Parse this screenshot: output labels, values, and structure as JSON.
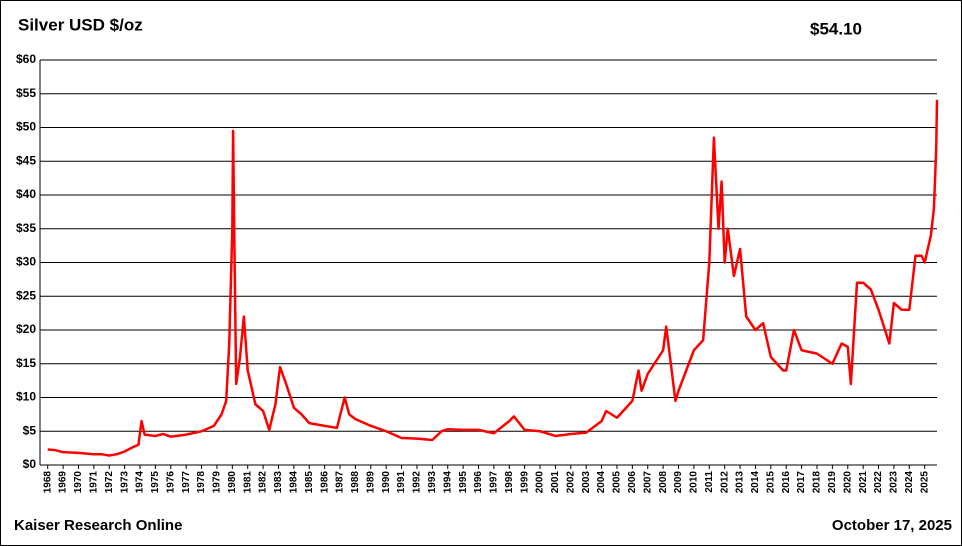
{
  "chart_data": {
    "type": "line",
    "title": "Silver USD $/oz",
    "annotation": "$54.10",
    "source": "Kaiser Research Online",
    "date": "October 17, 2025",
    "x": [
      1968.0,
      1968.5,
      1969.0,
      1970.0,
      1971.0,
      1971.5,
      1972.0,
      1972.5,
      1973.0,
      1973.5,
      1973.9,
      1974.1,
      1974.3,
      1975.0,
      1975.5,
      1976.0,
      1977.0,
      1978.0,
      1978.8,
      1979.3,
      1979.6,
      1979.8,
      1980.0,
      1980.05,
      1980.15,
      1980.25,
      1980.5,
      1980.75,
      1981.0,
      1981.5,
      1982.0,
      1982.4,
      1982.8,
      1983.1,
      1983.5,
      1984.0,
      1984.5,
      1985.0,
      1986.0,
      1986.8,
      1987.3,
      1987.6,
      1988.0,
      1989.0,
      1990.0,
      1991.0,
      1992.0,
      1993.0,
      1993.6,
      1994.0,
      1995.0,
      1996.0,
      1997.0,
      1998.0,
      1998.3,
      1999.0,
      2000.0,
      2001.0,
      2002.0,
      2003.0,
      2004.0,
      2004.3,
      2005.0,
      2006.0,
      2006.4,
      2006.6,
      2007.0,
      2008.0,
      2008.2,
      2008.8,
      2009.0,
      2009.5,
      2010.0,
      2010.6,
      2011.0,
      2011.3,
      2011.6,
      2011.8,
      2012.0,
      2012.2,
      2012.6,
      2013.0,
      2013.4,
      2014.0,
      2014.5,
      2015.0,
      2015.8,
      2016.0,
      2016.5,
      2017.0,
      2018.0,
      2019.0,
      2019.6,
      2020.0,
      2020.2,
      2020.6,
      2021.0,
      2021.5,
      2022.0,
      2022.7,
      2023.0,
      2023.5,
      2024.0,
      2024.4,
      2024.8,
      2025.0,
      2025.4,
      2025.6,
      2025.75,
      2025.8
    ],
    "series": [
      {
        "name": "Silver",
        "color": "#ff0000",
        "values": [
          2.3,
          2.2,
          1.9,
          1.8,
          1.6,
          1.6,
          1.4,
          1.6,
          2.0,
          2.6,
          3.0,
          6.5,
          4.5,
          4.3,
          4.6,
          4.2,
          4.5,
          5.0,
          5.8,
          7.5,
          9.5,
          18,
          35,
          49.5,
          30,
          12,
          16,
          22,
          14,
          9,
          8,
          5.2,
          9,
          14.5,
          12,
          8.5,
          7.5,
          6.2,
          5.8,
          5.5,
          10,
          7.5,
          6.8,
          5.8,
          5.0,
          4.0,
          3.9,
          3.7,
          5.0,
          5.3,
          5.2,
          5.2,
          4.7,
          6.5,
          7.2,
          5.2,
          5.0,
          4.3,
          4.6,
          4.8,
          6.5,
          8,
          7.0,
          9.5,
          14,
          11,
          13.5,
          17,
          20.5,
          9.5,
          11,
          14,
          17,
          18.5,
          30,
          48.5,
          35,
          42,
          30,
          35,
          28,
          32,
          22,
          20,
          21,
          16,
          14,
          14,
          20,
          17,
          16.5,
          15,
          18,
          17.5,
          12,
          27,
          27,
          26,
          23,
          18,
          24,
          23,
          23,
          31,
          31,
          30,
          34,
          38,
          47,
          54.1
        ]
      }
    ],
    "xlim": [
      1967.5,
      2025.8
    ],
    "xticks": [
      1968,
      1969,
      1970,
      1971,
      1972,
      1973,
      1974,
      1975,
      1976,
      1977,
      1978,
      1979,
      1980,
      1981,
      1982,
      1983,
      1984,
      1985,
      1986,
      1987,
      1988,
      1989,
      1990,
      1991,
      1992,
      1993,
      1994,
      1995,
      1996,
      1997,
      1998,
      1999,
      2000,
      2001,
      2002,
      2003,
      2004,
      2005,
      2006,
      2007,
      2008,
      2009,
      2010,
      2011,
      2012,
      2013,
      2014,
      2015,
      2016,
      2017,
      2018,
      2019,
      2020,
      2021,
      2022,
      2023,
      2024,
      2025
    ],
    "ylim": [
      0,
      60
    ],
    "yticks": [
      {
        "value": 0,
        "label": "$0"
      },
      {
        "value": 5,
        "label": "$5"
      },
      {
        "value": 10,
        "label": "$10"
      },
      {
        "value": 15,
        "label": "$15"
      },
      {
        "value": 20,
        "label": "$20"
      },
      {
        "value": 25,
        "label": "$25"
      },
      {
        "value": 30,
        "label": "$30"
      },
      {
        "value": 35,
        "label": "$35"
      },
      {
        "value": 40,
        "label": "$40"
      },
      {
        "value": 45,
        "label": "$45"
      },
      {
        "value": 50,
        "label": "$50"
      },
      {
        "value": 55,
        "label": "$55"
      },
      {
        "value": 60,
        "label": "$60"
      }
    ],
    "grid": true
  }
}
